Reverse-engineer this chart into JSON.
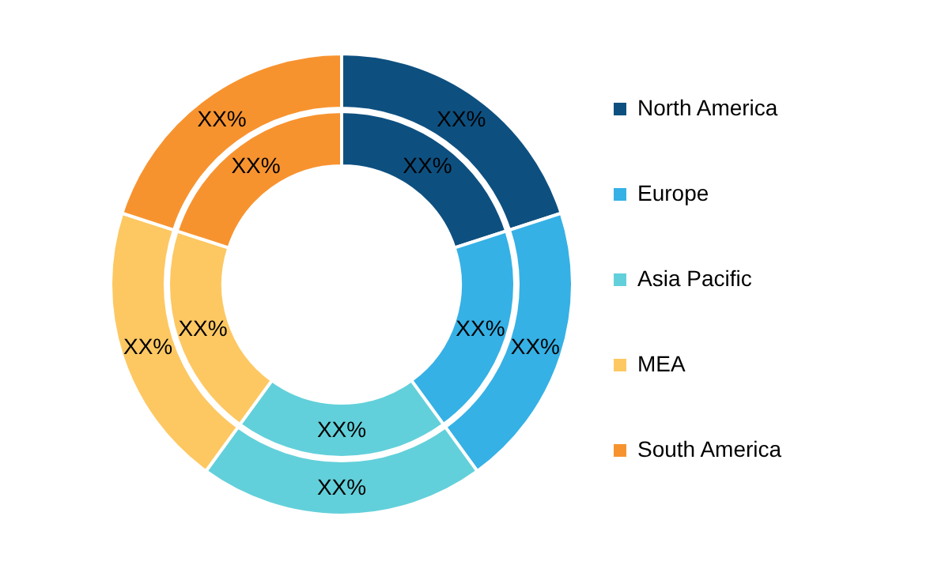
{
  "chart_data": {
    "type": "donut",
    "categories": [
      "North America",
      "Europe",
      "Asia Pacific",
      "MEA",
      "South America"
    ],
    "colors": [
      "#0d5080",
      "#35b1e5",
      "#62d0da",
      "#fdc862",
      "#f7932f"
    ],
    "series": [
      {
        "values": [
          20,
          20,
          20,
          20,
          20
        ],
        "value_labels": [
          "XX%",
          "XX%",
          "XX%",
          "XX%",
          "XX%"
        ]
      },
      {
        "values": [
          20,
          20,
          20,
          20,
          20
        ],
        "value_labels": [
          "XX%",
          "XX%",
          "XX%",
          "XX%",
          "XX%"
        ]
      }
    ],
    "legend": "right"
  }
}
